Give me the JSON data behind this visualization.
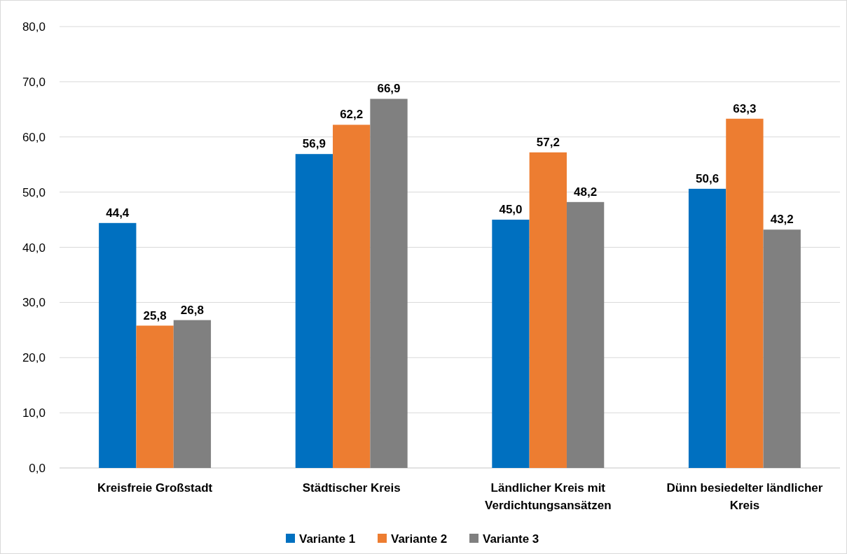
{
  "chart_data": {
    "type": "bar",
    "categories": [
      "Kreisfreie Großstadt",
      "Städtischer Kreis",
      "Ländlicher Kreis mit Verdichtungsansätzen",
      "Dünn besiedelter ländlicher Kreis"
    ],
    "series": [
      {
        "name": "Variante 1",
        "color": "#0070c0",
        "values": [
          44.4,
          56.9,
          45.0,
          50.6
        ],
        "value_labels": [
          "44,4",
          "56,9",
          "45,0",
          "50,6"
        ]
      },
      {
        "name": "Variante 2",
        "color": "#ed7d31",
        "values": [
          25.8,
          62.2,
          57.2,
          63.3
        ],
        "value_labels": [
          "25,8",
          "62,2",
          "57,2",
          "63,3"
        ]
      },
      {
        "name": "Variante 3",
        "color": "#808080",
        "values": [
          26.8,
          66.9,
          48.2,
          43.2
        ],
        "value_labels": [
          "26,8",
          "66,9",
          "48,2",
          "43,2"
        ]
      }
    ],
    "ylim": [
      0,
      80
    ],
    "yticks": [
      {
        "value": 0,
        "label": "0,0"
      },
      {
        "value": 10,
        "label": "10,0"
      },
      {
        "value": 20,
        "label": "20,0"
      },
      {
        "value": 30,
        "label": "30,0"
      },
      {
        "value": 40,
        "label": "40,0"
      },
      {
        "value": 50,
        "label": "50,0"
      },
      {
        "value": 60,
        "label": "60,0"
      },
      {
        "value": 70,
        "label": "70,0"
      },
      {
        "value": 80,
        "label": "80,0"
      }
    ],
    "grid": "y",
    "legend": "bottom"
  }
}
